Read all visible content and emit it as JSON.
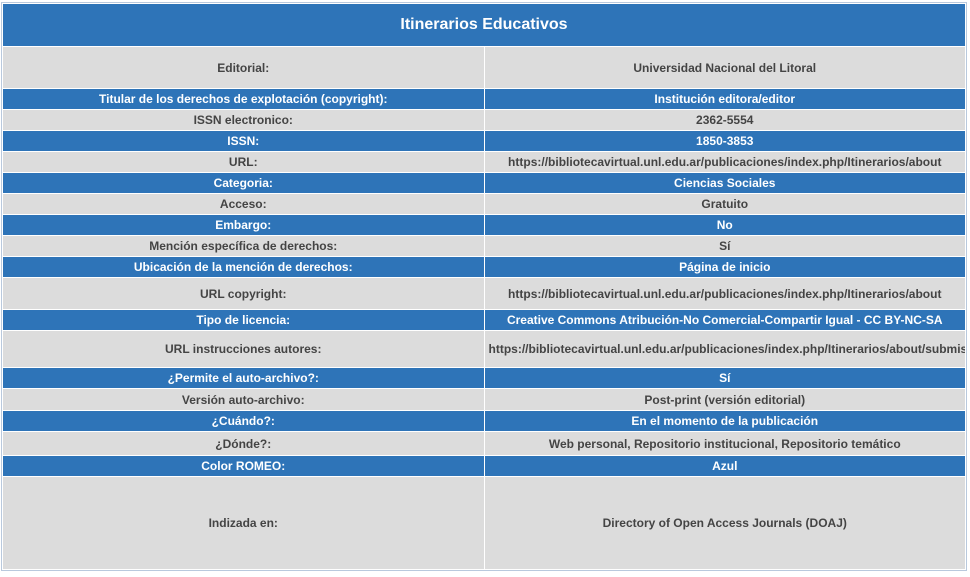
{
  "title": "Itinerarios Educativos",
  "rows": [
    {
      "label": "Editorial:",
      "value": "Universidad Nacional del Litoral"
    },
    {
      "label": "Titular de los derechos de explotación (copyright):",
      "value": "Institución editora/editor"
    },
    {
      "label": "ISSN electronico:",
      "value": "2362-5554"
    },
    {
      "label": "ISSN:",
      "value": "1850-3853"
    },
    {
      "label": "URL:",
      "value": "https://bibliotecavirtual.unl.edu.ar/publicaciones/index.php/Itinerarios/about"
    },
    {
      "label": "Categoria:",
      "value": "Ciencias Sociales"
    },
    {
      "label": "Acceso:",
      "value": "Gratuito"
    },
    {
      "label": "Embargo:",
      "value": "No"
    },
    {
      "label": "Mención específica de derechos:",
      "value": "Sí"
    },
    {
      "label": "Ubicación de la mención de derechos:",
      "value": "Página de inicio"
    },
    {
      "label": "URL copyright:",
      "value": "https://bibliotecavirtual.unl.edu.ar/publicaciones/index.php/Itinerarios/about"
    },
    {
      "label": "Tipo de licencia:",
      "value": "Creative Commons Atribución-No Comercial-Compartir Igual - CC BY-NC-SA"
    },
    {
      "label": "URL instrucciones autores:",
      "value": "https://bibliotecavirtual.unl.edu.ar/publicaciones/index.php/Itinerarios/about/submissions"
    },
    {
      "label": "¿Permite el auto-archivo?:",
      "value": "Sí"
    },
    {
      "label": "Versión auto-archivo:",
      "value": "Post-print (versión editorial)"
    },
    {
      "label": "¿Cuándo?:",
      "value": "En el momento de la publicación"
    },
    {
      "label": "¿Dónde?:",
      "value": "Web personal, Repositorio institucional, Repositorio temático"
    },
    {
      "label": "Color ROMEO:",
      "value": "Azul"
    },
    {
      "label": "Indizada en:",
      "value": "Directory of Open Access Journals (DOAJ)"
    }
  ],
  "colors": {
    "header_blue": "#2e74b8",
    "row_gray": "#dcdcdc",
    "text_gray": "#444444",
    "text_white": "#ffffff"
  }
}
